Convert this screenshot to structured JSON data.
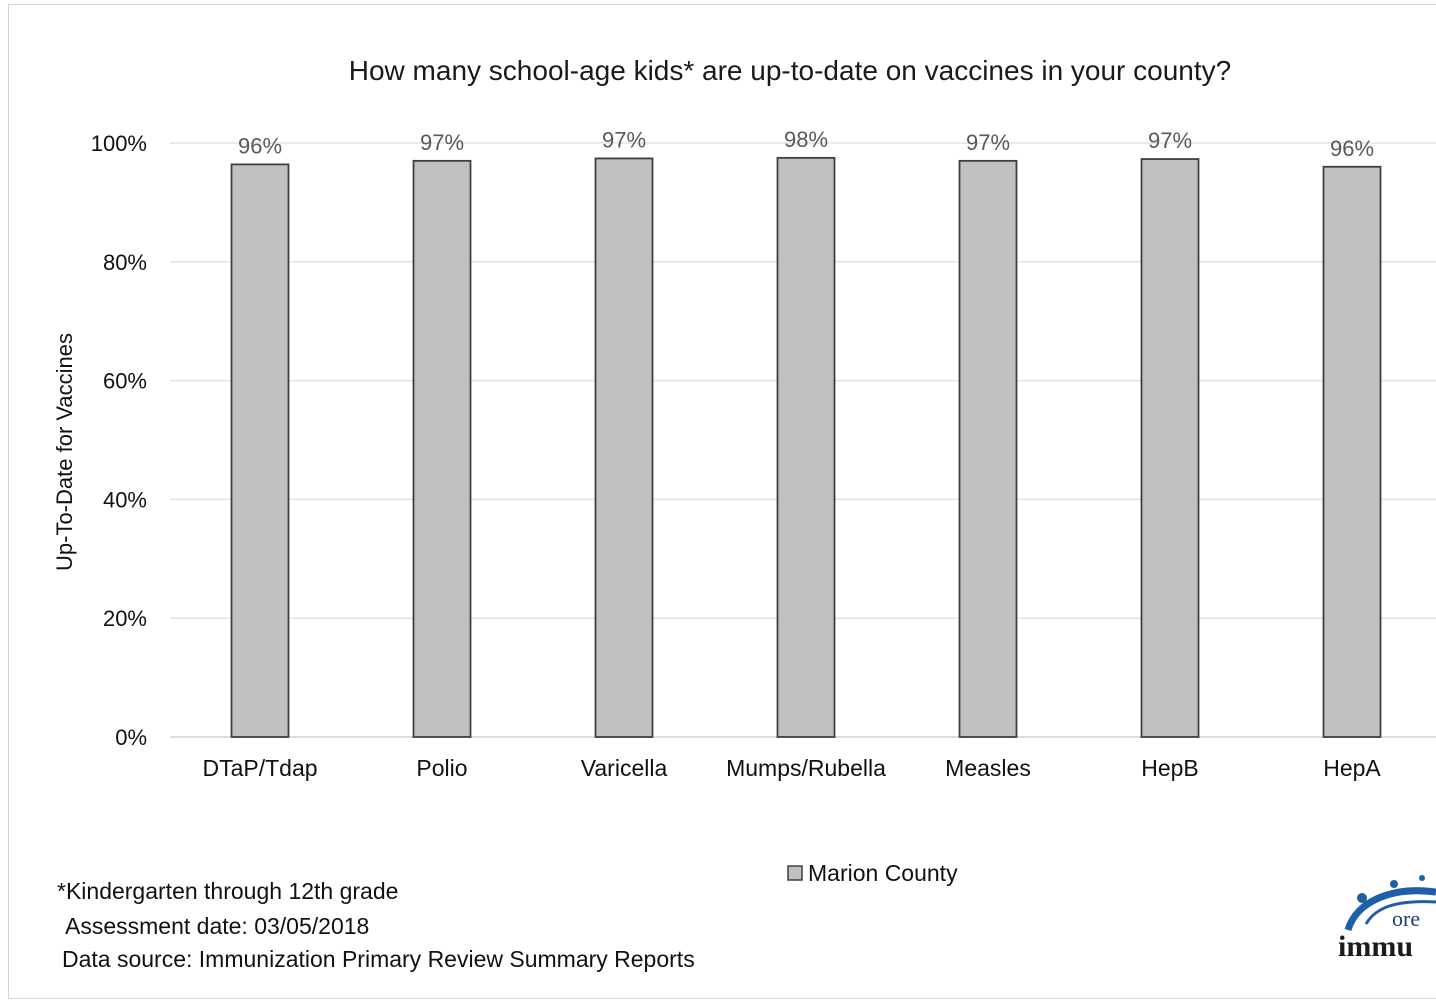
{
  "chart_data": {
    "type": "bar",
    "title": "How many school-age kids* are up-to-date on vaccines in your county?",
    "xlabel": "",
    "ylabel": "Up-To-Date for Vaccines",
    "categories": [
      "DTaP/Tdap",
      "Polio",
      "Varicella",
      "Mumps/Rubella",
      "Measles",
      "HepB",
      "HepA"
    ],
    "series": [
      {
        "name": "Marion County",
        "values": [
          96.4,
          97.0,
          97.4,
          97.5,
          97.0,
          97.3,
          96.0
        ],
        "data_labels": [
          "96%",
          "97%",
          "97%",
          "98%",
          "97%",
          "97%",
          "96%"
        ]
      }
    ],
    "ylim": [
      0,
      100
    ],
    "yticks": [
      0,
      20,
      40,
      60,
      80,
      100
    ],
    "ytick_labels": [
      "0%",
      "20%",
      "40%",
      "60%",
      "80%",
      "100%"
    ],
    "grid": true,
    "legend_position": "bottom"
  },
  "colors": {
    "bar_fill": "#c0c0c0",
    "bar_stroke": "#3f3f3f",
    "grid": "#e3e3e3",
    "label_text": "#595959"
  },
  "footnotes": {
    "grades": "*Kindergarten through 12th grade",
    "assessment_date": "Assessment date: 03/05/2018",
    "data_source": "Data source: Immunization Primary Review Summary Reports"
  },
  "logo": {
    "text_line1": "ore",
    "text_line2": "immu"
  }
}
